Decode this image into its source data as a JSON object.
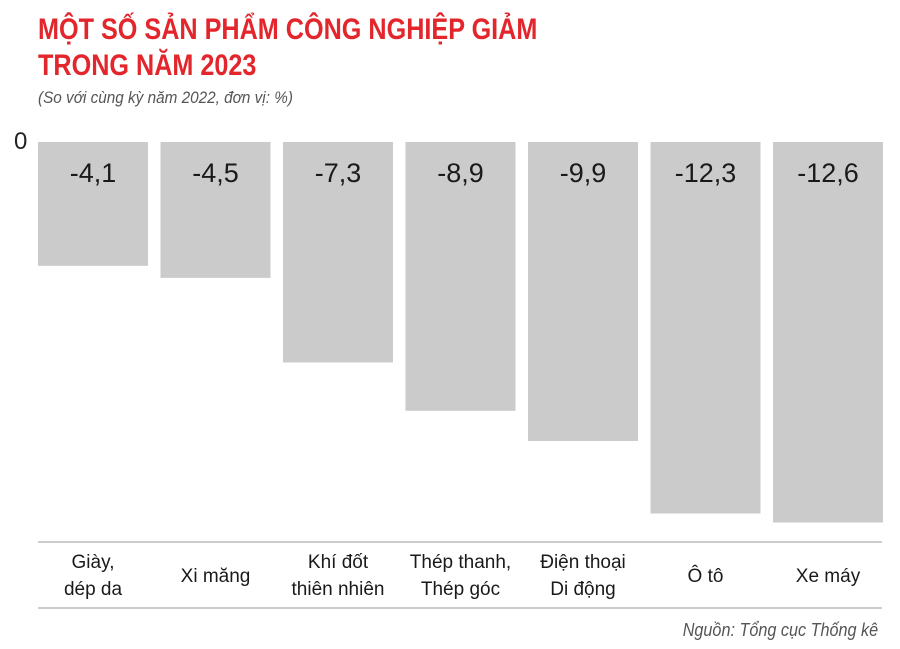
{
  "title_line1": "MỘT SỐ SẢN PHẨM CÔNG NGHIỆP GIẢM",
  "title_line2": "TRONG NĂM 2023",
  "subtitle": "(So với cùng kỳ năm 2022, đơn vị: %)",
  "source": "Nguồn: Tổng cục Thống kê",
  "colors": {
    "title": "#e3262b",
    "bar": "#cbcbcb",
    "axis": "#999999"
  },
  "chart_data": {
    "type": "bar",
    "categories": [
      [
        "Giày,",
        "dép da"
      ],
      [
        "Xi măng"
      ],
      [
        "Khí đốt",
        "thiên nhiên"
      ],
      [
        "Thép thanh,",
        "Thép góc"
      ],
      [
        "Điện thoại",
        "Di động"
      ],
      [
        "Ô tô"
      ],
      [
        "Xe máy"
      ]
    ],
    "values": [
      -4.1,
      -4.5,
      -7.3,
      -8.9,
      -9.9,
      -12.3,
      -12.6
    ],
    "value_labels": [
      "-4,1",
      "-4,5",
      "-7,3",
      "-8,9",
      "-9,9",
      "-12,3",
      "-12,6"
    ],
    "zero_label": "0",
    "ylim": [
      -13,
      0
    ]
  }
}
